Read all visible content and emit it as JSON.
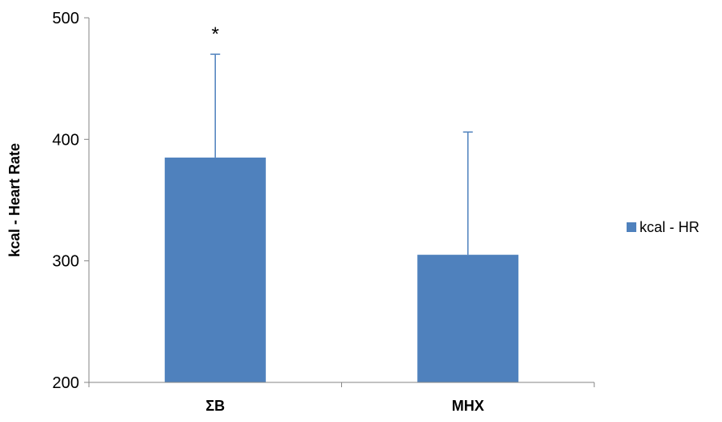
{
  "chart_data": {
    "type": "bar",
    "categories": [
      "ΣΒ",
      "ΜΗΧ"
    ],
    "series": [
      {
        "name": "kcal - HR",
        "values": [
          385,
          305
        ],
        "error_upper": [
          470,
          406
        ],
        "color": "#4F81BD"
      }
    ],
    "ylabel": "kcal - Heart Rate",
    "xlabel": "",
    "ylim": [
      200,
      500
    ],
    "yticks": [
      200,
      300,
      400,
      500
    ],
    "grid": false,
    "legend_position": "right",
    "annotations": [
      {
        "text": "*",
        "category": "ΣΒ"
      }
    ],
    "axis_color": "#868686"
  }
}
